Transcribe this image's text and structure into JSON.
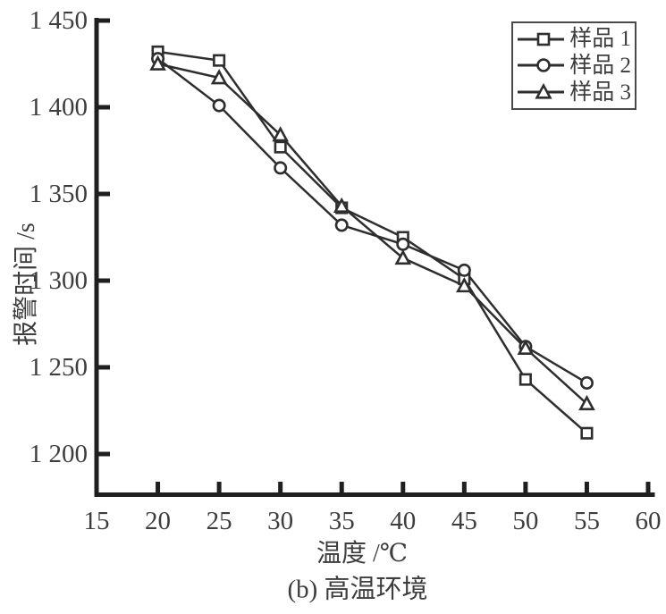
{
  "figure": {
    "caption": "(b) 高温环境"
  },
  "chart_data": {
    "type": "line",
    "title": "",
    "xlabel": "温度 /℃",
    "ylabel": "报警时间 /s",
    "x": [
      20,
      25,
      30,
      35,
      40,
      45,
      50,
      55
    ],
    "series": [
      {
        "name": "样品 1",
        "marker": "square",
        "values": [
          1432,
          1427,
          1377,
          1342,
          1325,
          1301,
          1243,
          1212
        ]
      },
      {
        "name": "样品 2",
        "marker": "circle",
        "values": [
          1428,
          1401,
          1365,
          1332,
          1321,
          1306,
          1262,
          1241
        ]
      },
      {
        "name": "样品 3",
        "marker": "triangle",
        "values": [
          1425,
          1417,
          1384,
          1343,
          1313,
          1297,
          1261,
          1229
        ]
      }
    ],
    "xlim": [
      15,
      60
    ],
    "ylim": [
      1175,
      1450
    ],
    "x_ticks": [
      15,
      20,
      25,
      30,
      35,
      40,
      45,
      50,
      55,
      60
    ],
    "y_ticks": [
      1200,
      1250,
      1300,
      1350,
      1400,
      1450
    ],
    "y_tick_labels": [
      "1 200",
      "1 250",
      "1 300",
      "1 350",
      "1 400",
      "1 450"
    ],
    "grid": false,
    "legend_position": "top-right",
    "colors": {
      "axis": "#1f1f1f",
      "line": "#2e2e2e",
      "marker_fill": "#ffffff",
      "text": "#3d3d3d"
    }
  }
}
